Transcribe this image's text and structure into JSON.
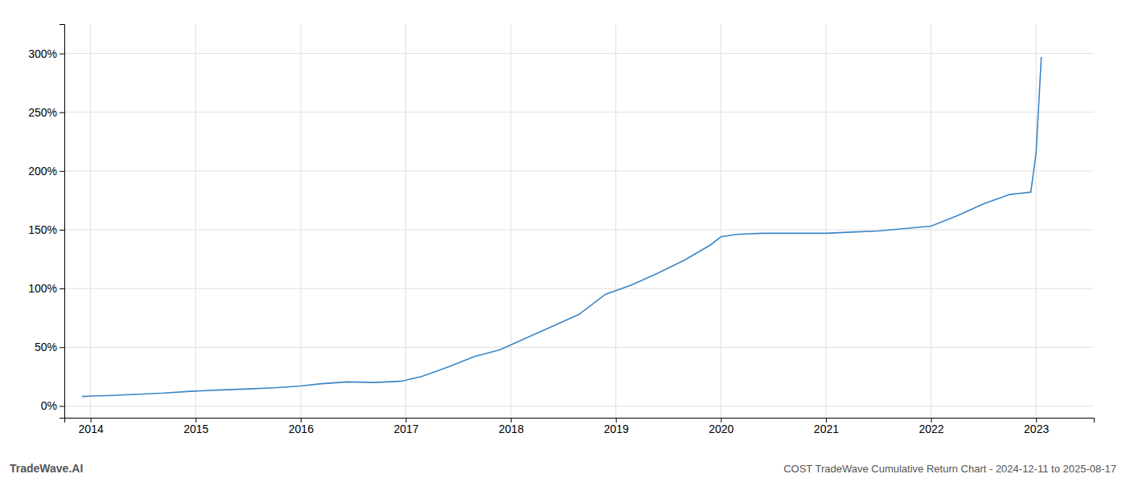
{
  "chart_data": {
    "type": "line",
    "title": "COST TradeWave Cumulative Return Chart - 2024-12-11 to 2025-08-17",
    "annotations": [
      "TradeWave.AI"
    ],
    "x": [
      2013.92,
      2014.0,
      2014.2,
      2014.45,
      2014.7,
      2014.95,
      2015.2,
      2015.5,
      2015.75,
      2016.0,
      2016.2,
      2016.45,
      2016.7,
      2016.95,
      2017.15,
      2017.4,
      2017.65,
      2017.9,
      2018.15,
      2018.4,
      2018.65,
      2018.9,
      2019.15,
      2019.4,
      2019.65,
      2019.9,
      2020.0,
      2020.15,
      2020.4,
      2020.65,
      2020.85,
      2021.0,
      2021.25,
      2021.5,
      2021.75,
      2022.0,
      2022.25,
      2022.5,
      2022.75,
      2022.95,
      2023.0,
      2023.05
    ],
    "values": [
      8,
      8.5,
      9,
      10,
      11,
      12.5,
      13.5,
      14.5,
      15.5,
      17,
      19,
      20.5,
      20,
      21,
      25,
      33,
      42,
      48,
      58,
      68,
      78,
      95,
      103,
      113,
      124,
      137,
      144,
      146,
      147,
      147,
      147,
      147,
      148,
      149,
      151,
      153,
      162,
      172,
      180,
      182,
      215,
      297
    ],
    "color": "#3a86c8",
    "xlim": [
      2013.75,
      2023.55
    ],
    "xticks": [
      2014,
      2015,
      2016,
      2017,
      2018,
      2019,
      2020,
      2021,
      2022,
      2023
    ],
    "ylim": [
      -10,
      325
    ],
    "yticks": [
      {
        "value": 0,
        "label": "0%"
      },
      {
        "value": 50,
        "label": "50%"
      },
      {
        "value": 100,
        "label": "100%"
      },
      {
        "value": 150,
        "label": "150%"
      },
      {
        "value": 200,
        "label": "200%"
      },
      {
        "value": 250,
        "label": "250%"
      },
      {
        "value": 300,
        "label": "300%"
      }
    ],
    "grid": true
  }
}
